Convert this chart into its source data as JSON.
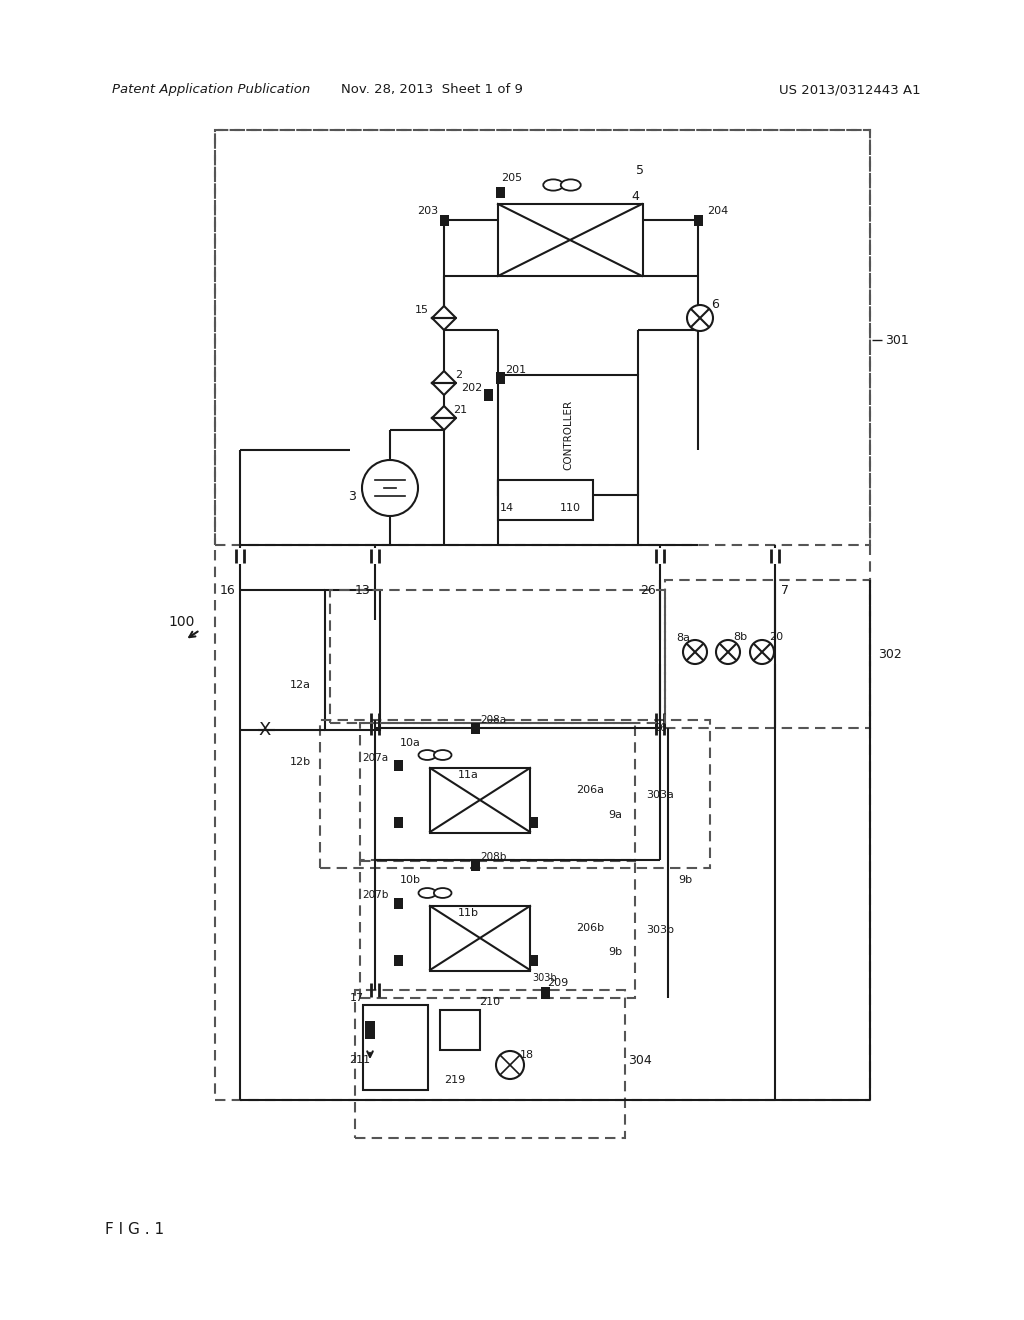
{
  "title_left": "Patent Application Publication",
  "title_mid": "Nov. 28, 2013  Sheet 1 of 9",
  "title_right": "US 2013/0312443 A1",
  "fig_label": "F I G . 1",
  "bg": "#ffffff",
  "lc": "#1a1a1a",
  "dc": "#555555"
}
